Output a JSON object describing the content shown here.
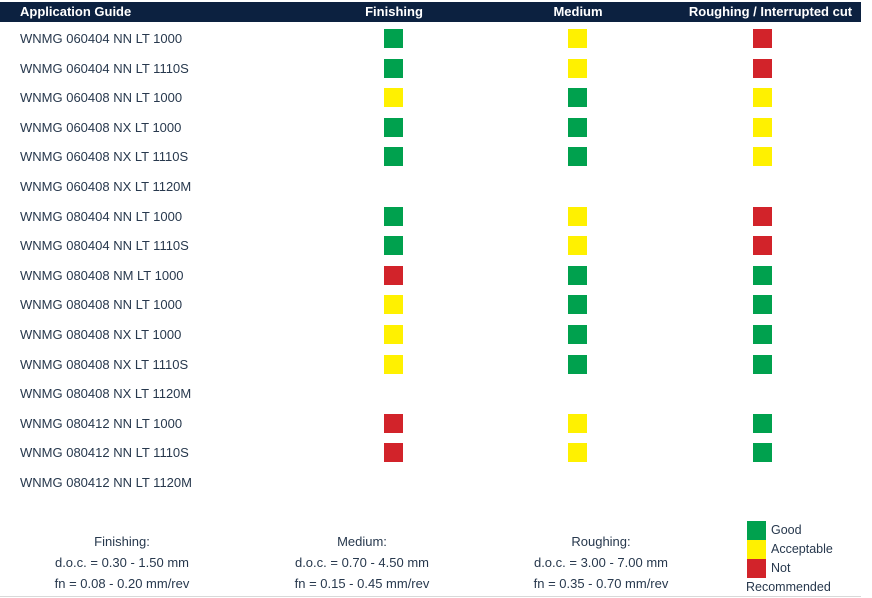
{
  "table": {
    "headers": {
      "application_guide": "Application Guide",
      "finishing": "Finishing",
      "medium": "Medium",
      "roughing": "Roughing / Interrupted cut"
    },
    "rows": [
      {
        "name": "WNMG 060404 NN LT 1000",
        "finishing": "good",
        "medium": "acceptable",
        "roughing": "not-recommended"
      },
      {
        "name": "WNMG 060404 NN LT 1110S",
        "finishing": "good",
        "medium": "acceptable",
        "roughing": "not-recommended"
      },
      {
        "name": "WNMG 060408 NN LT 1000",
        "finishing": "acceptable",
        "medium": "good",
        "roughing": "acceptable"
      },
      {
        "name": "WNMG 060408 NX LT 1000",
        "finishing": "good",
        "medium": "good",
        "roughing": "acceptable"
      },
      {
        "name": "WNMG 060408 NX LT 1110S",
        "finishing": "good",
        "medium": "good",
        "roughing": "acceptable"
      },
      {
        "name": "WNMG 060408 NX LT 1120M",
        "finishing": "none",
        "medium": "none",
        "roughing": "none"
      },
      {
        "name": "WNMG 080404 NN LT 1000",
        "finishing": "good",
        "medium": "acceptable",
        "roughing": "not-recommended"
      },
      {
        "name": "WNMG 080404 NN LT 1110S",
        "finishing": "good",
        "medium": "acceptable",
        "roughing": "not-recommended"
      },
      {
        "name": "WNMG 080408 NM LT 1000",
        "finishing": "not-recommended",
        "medium": "good",
        "roughing": "good"
      },
      {
        "name": "WNMG 080408 NN LT 1000",
        "finishing": "acceptable",
        "medium": "good",
        "roughing": "good"
      },
      {
        "name": "WNMG 080408 NX LT 1000",
        "finishing": "acceptable",
        "medium": "good",
        "roughing": "good"
      },
      {
        "name": "WNMG 080408 NX LT 1110S",
        "finishing": "acceptable",
        "medium": "good",
        "roughing": "good"
      },
      {
        "name": "WNMG 080408 NX LT 1120M",
        "finishing": "none",
        "medium": "none",
        "roughing": "none"
      },
      {
        "name": "WNMG 080412 NN LT 1000",
        "finishing": "not-recommended",
        "medium": "acceptable",
        "roughing": "good"
      },
      {
        "name": "WNMG 080412 NN LT 1110S",
        "finishing": "not-recommended",
        "medium": "acceptable",
        "roughing": "good"
      },
      {
        "name": "WNMG 080412 NN LT 1120M",
        "finishing": "none",
        "medium": "none",
        "roughing": "none"
      }
    ]
  },
  "notes": {
    "finishing": {
      "title": "Finishing:",
      "doc": "d.o.c. = 0.30 - 1.50 mm",
      "fn": "fn = 0.08 - 0.20 mm/rev"
    },
    "medium": {
      "title": "Medium:",
      "doc": "d.o.c. = 0.70 - 4.50 mm",
      "fn": "fn = 0.15 - 0.45 mm/rev"
    },
    "roughing": {
      "title": "Roughing:",
      "doc": "d.o.c. = 3.00 - 7.00 mm",
      "fn": "fn = 0.35 - 0.70 mm/rev"
    }
  },
  "legend": {
    "items": [
      {
        "level": "good",
        "label": "Good"
      },
      {
        "level": "acceptable",
        "label": "Acceptable"
      },
      {
        "level": "not-recommended",
        "label": "Not"
      }
    ],
    "wrap_label": "Recommended"
  },
  "colors": {
    "header_bg": "#0C2140",
    "good": "#00A14E",
    "acceptable": "#FFF100",
    "not_recommended": "#D2232A",
    "text": "#27384D"
  }
}
